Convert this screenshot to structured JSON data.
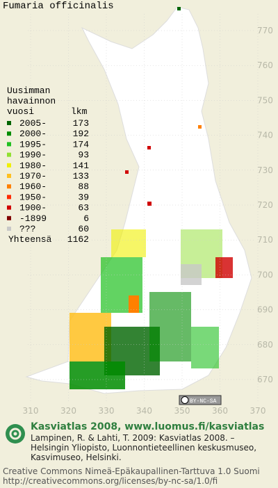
{
  "title": "Fumaria officinalis",
  "legend": {
    "heading": [
      "Uusimman",
      "havainnon"
    ],
    "col_year": "vuosi",
    "col_count": "lkm",
    "rows": [
      {
        "label": "2005-",
        "count": "173",
        "color": "#006400"
      },
      {
        "label": "2000-",
        "count": "192",
        "color": "#008c00"
      },
      {
        "label": "1995-",
        "count": "174",
        "color": "#20c020"
      },
      {
        "label": "1990-",
        "count": "93",
        "color": "#90e030"
      },
      {
        "label": "1980-",
        "count": "141",
        "color": "#f0f000"
      },
      {
        "label": "1970-",
        "count": "133",
        "color": "#ffc020"
      },
      {
        "label": "1960-",
        "count": "88",
        "color": "#ff8000"
      },
      {
        "label": "1950-",
        "count": "39",
        "color": "#ff2a00"
      },
      {
        "label": "1900-",
        "count": "63",
        "color": "#d00000"
      },
      {
        "label": "-1899",
        "count": "6",
        "color": "#800000"
      },
      {
        "label": "???",
        "count": "60",
        "color": "#c8c8c8"
      }
    ],
    "total_label": "Yhteensä",
    "total": "1162"
  },
  "yticks": [
    770,
    760,
    750,
    740,
    730,
    720,
    710,
    700,
    690,
    680,
    670
  ],
  "xticks": [
    310,
    320,
    330,
    340,
    350,
    360,
    370
  ],
  "license_badge": "BY-NC-SA",
  "footer": {
    "heading": "Kasviatlas 2008, www.luomus.fi/kasviatlas",
    "citation": [
      "Lampinen, R. & Lahti, T. 2009: Kasviatlas 2008. –",
      "Helsingin Yliopisto, Luonnontieteellinen keskusmuseo,",
      "Kasvimuseo, Helsinki."
    ],
    "license": [
      "Creative Commons Nimeä-Epäkaupallinen-Tarttuva 1.0 Suomi",
      "http://creativecommons.org/licenses/by-nc-sa/1.0/fi"
    ]
  }
}
